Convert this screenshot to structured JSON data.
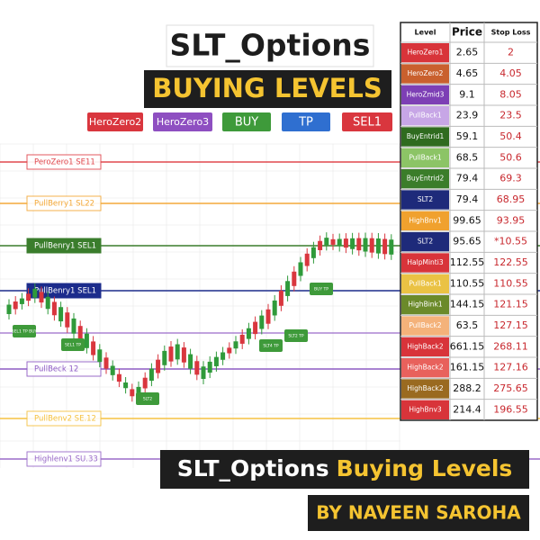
{
  "header": {
    "title": "SLT_Options",
    "subtitle": "BUYING LEVELS"
  },
  "legend": [
    {
      "label": "HeroZero2",
      "color": "#d9363e"
    },
    {
      "label": "HeroZero3",
      "color": "#8e4fc1"
    },
    {
      "label": "BUY",
      "color": "#3e9a3a"
    },
    {
      "label": "TP",
      "color": "#2f6fd0"
    },
    {
      "label": "SEL1",
      "color": "#d9363e"
    }
  ],
  "levels": [
    {
      "label": "PeroZero1  SE11",
      "color": "#e0484e"
    },
    {
      "label": "PullBerry1  SL22",
      "color": "#f3a93a"
    },
    {
      "label": "PullBenry1  SEL1",
      "color": "#3a7d2c"
    },
    {
      "label": "PullBenry1  SEL1",
      "color": "#1c2c8c"
    },
    {
      "label": "PullBeck  12",
      "color": "#8e5bc4"
    },
    {
      "label": "PullBenv2  SE.12",
      "color": "#f5c242"
    },
    {
      "label": "Highlenv1  SU.33",
      "color": "#9a6bc9"
    }
  ],
  "tags": [
    "SEL1 TP BUY",
    "SEL1 TP",
    "SLT2",
    "SLT4 TP",
    "BUY TP",
    "SLT2 TP"
  ],
  "table": {
    "columns": [
      "Level",
      "Price",
      "Stop Loss"
    ],
    "rows": [
      [
        "HeroZero1",
        "2.65",
        "2",
        "#d8343a"
      ],
      [
        "HeroZero2",
        "4.65",
        "4.05",
        "#c9602e"
      ],
      [
        "HeroZmid3",
        "9.1",
        "8.05",
        "#7d3fb5"
      ],
      [
        "PullBack1",
        "23.9",
        "23.5",
        "#c7a6e6"
      ],
      [
        "BuyEntrid1",
        "59.1",
        "50.4",
        "#2f6b1f"
      ],
      [
        "PullBack1",
        "68.5",
        "50.6",
        "#8cc466"
      ],
      [
        "BuyEntrid2",
        "79.4",
        "69.3",
        "#3b7d2a"
      ],
      [
        "SLT2",
        "79.4",
        "68.95",
        "#1e2a7a"
      ],
      [
        "HighBnv1",
        "99.65",
        "93.95",
        "#f0a12e"
      ],
      [
        "SLT2",
        "95.65",
        "*10.55",
        "#1e2a7a"
      ],
      [
        "HalpMinti3",
        "112.55",
        "122.55",
        "#d8343a"
      ],
      [
        "PullBack1",
        "110.55",
        "110.55",
        "#eac244"
      ],
      [
        "HighBink1",
        "144.15",
        "121.15",
        "#6b8a2a"
      ],
      [
        "PullBack2",
        "63.5",
        "127.15",
        "#f4b27a"
      ],
      [
        "HighBack2",
        "661.15",
        "268.11",
        "#d8343a"
      ],
      [
        "HighBack2",
        "161.15",
        "127.16",
        "#e8615c"
      ],
      [
        "HighBack2",
        "288.2",
        "275.65",
        "#9a6a20"
      ],
      [
        "HighBnv3",
        "214.4",
        "196.55",
        "#d8343a"
      ]
    ]
  },
  "footer": {
    "title": "SLT_Options",
    "title_accent": "Buying Levels",
    "byline": "BY NAVEEN SAROHA"
  }
}
